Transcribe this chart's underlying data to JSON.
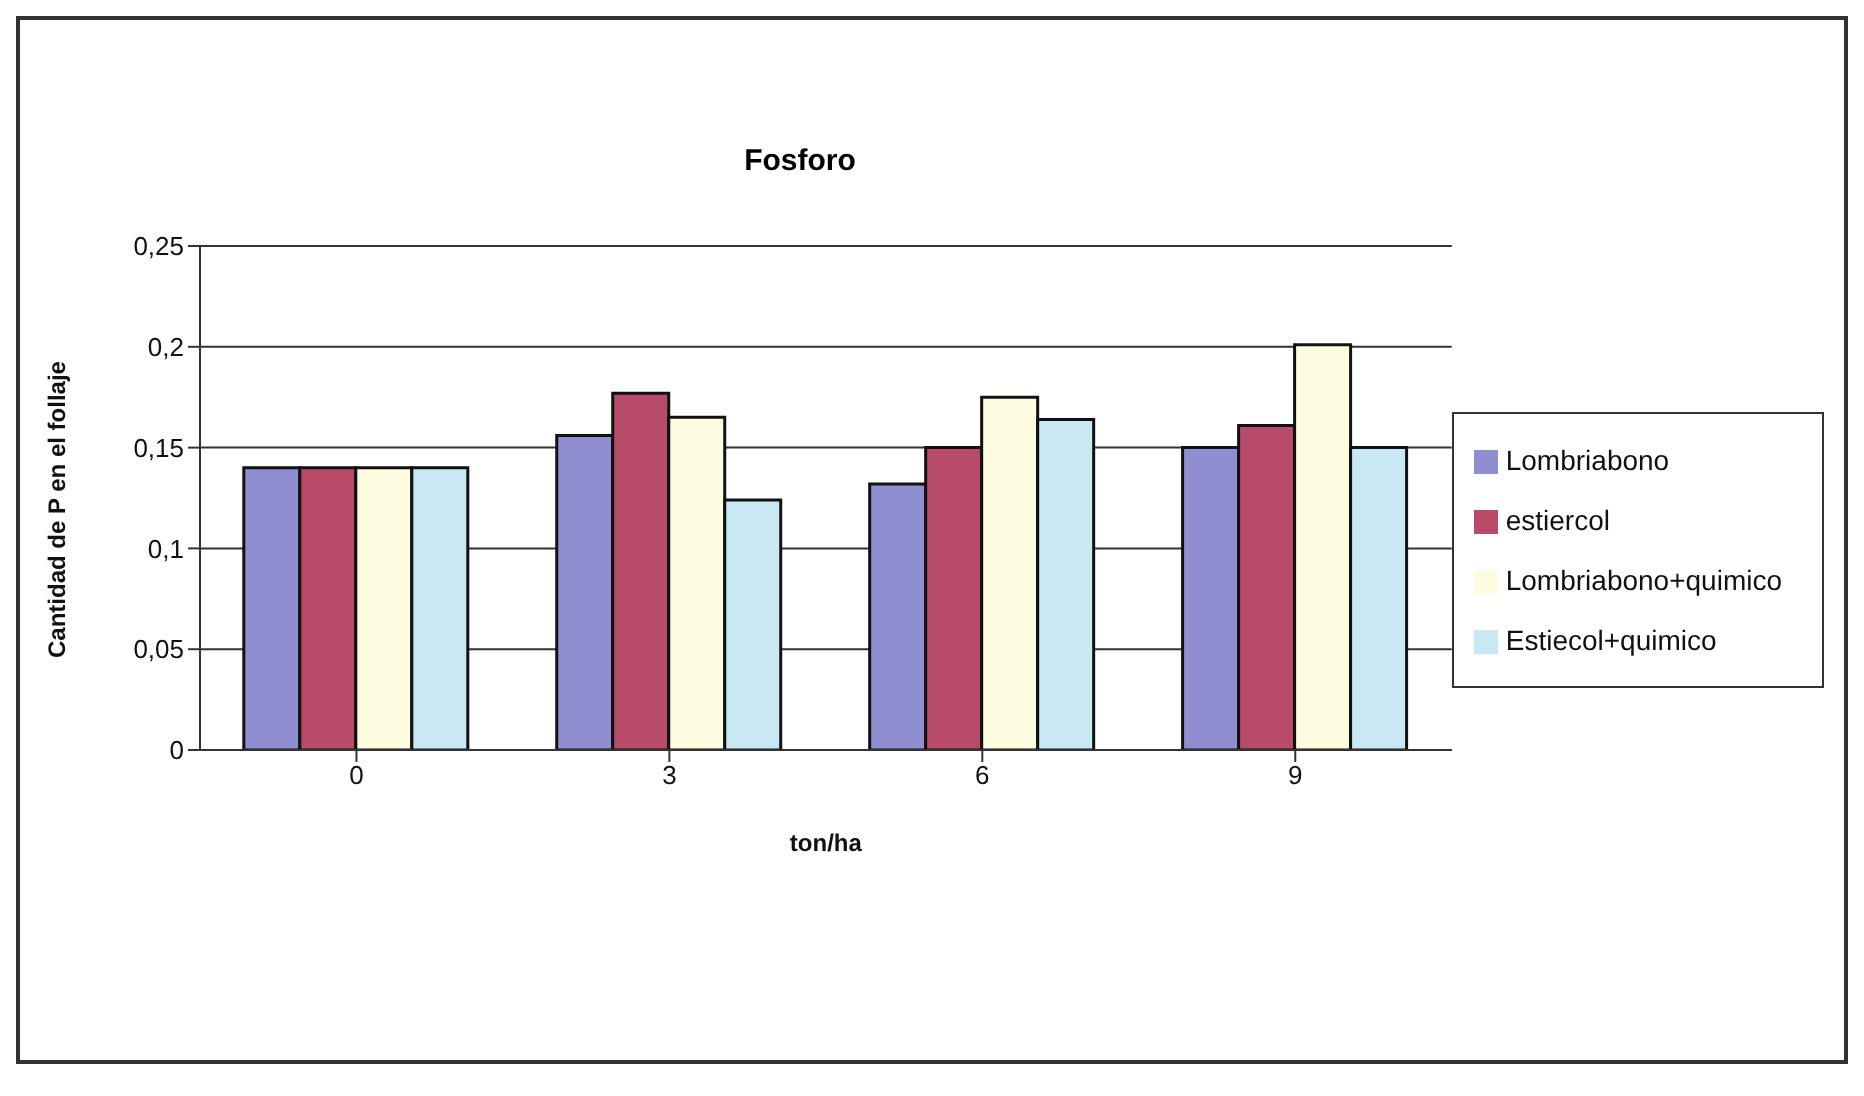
{
  "chart_data": {
    "type": "bar",
    "title": "Fosforo",
    "xlabel": "ton/ha",
    "ylabel": "Cantidad de P en el follaje",
    "categories": [
      "0",
      "3",
      "6",
      "9"
    ],
    "series": [
      {
        "name": "Lombriabono",
        "color": "#8e8ed0",
        "values": [
          0.14,
          0.156,
          0.132,
          0.15
        ]
      },
      {
        "name": "estiercol",
        "color": "#b84a6a",
        "values": [
          0.14,
          0.177,
          0.15,
          0.161
        ]
      },
      {
        "name": "Lombriabono+quimico",
        "color": "#fdfbe0",
        "values": [
          0.14,
          0.165,
          0.175,
          0.201
        ]
      },
      {
        "name": "Estiecol+quimico",
        "color": "#c8e8f4",
        "values": [
          0.14,
          0.124,
          0.164,
          0.15
        ]
      }
    ],
    "ylim": [
      0,
      0.25
    ],
    "yticks": [
      {
        "value": 0,
        "label": "0"
      },
      {
        "value": 0.05,
        "label": "0,05"
      },
      {
        "value": 0.1,
        "label": "0,1"
      },
      {
        "value": 0.15,
        "label": "0,15"
      },
      {
        "value": 0.2,
        "label": "0,2"
      },
      {
        "value": 0.25,
        "label": "0,25"
      }
    ],
    "grid": "y",
    "legend": "right"
  }
}
